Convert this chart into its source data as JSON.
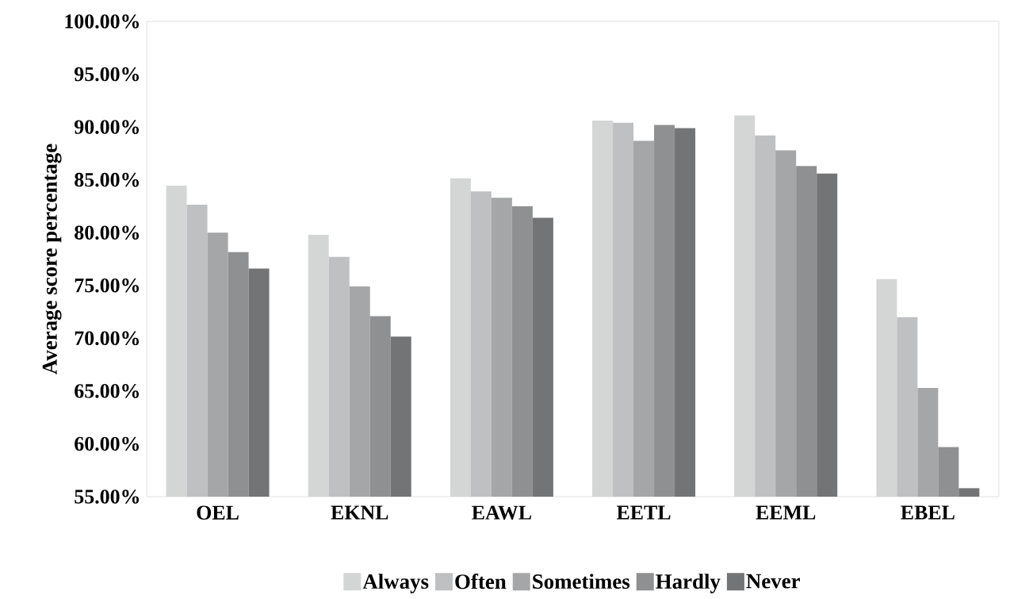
{
  "chart_data": {
    "type": "bar",
    "ylabel": "Average score percentage",
    "categories": [
      "OEL",
      "EKNL",
      "EAWL",
      "EETL",
      "EEML",
      "EBEL"
    ],
    "series": [
      {
        "name": "Always",
        "color": "#d4d6d6",
        "values": [
          84.45,
          79.8,
          85.15,
          90.6,
          91.1,
          75.6
        ]
      },
      {
        "name": "Often",
        "color": "#bfc0c1",
        "values": [
          82.65,
          77.7,
          83.9,
          90.4,
          89.2,
          72.0
        ]
      },
      {
        "name": "Sometimes",
        "color": "#a5a6a7",
        "values": [
          80.0,
          74.9,
          83.3,
          88.7,
          87.8,
          65.3
        ]
      },
      {
        "name": "Hardly",
        "color": "#8f9091",
        "values": [
          78.15,
          72.1,
          82.5,
          90.2,
          86.3,
          59.7
        ]
      },
      {
        "name": "Never",
        "color": "#737475",
        "values": [
          76.6,
          70.15,
          81.4,
          89.9,
          85.6,
          55.8
        ]
      }
    ],
    "ylim": [
      55,
      100
    ],
    "yticks": [
      {
        "value": 55,
        "label": "55.00%"
      },
      {
        "value": 60,
        "label": "60.00%"
      },
      {
        "value": 65,
        "label": "65.00%"
      },
      {
        "value": 70,
        "label": "70.00%"
      },
      {
        "value": 75,
        "label": "75.00%"
      },
      {
        "value": 80,
        "label": "80.00%"
      },
      {
        "value": 85,
        "label": "85.00%"
      },
      {
        "value": 90,
        "label": "90.00%"
      },
      {
        "value": 95,
        "label": "95.00%"
      },
      {
        "value": 100,
        "label": "100.00%"
      }
    ],
    "legend": "bottom"
  }
}
